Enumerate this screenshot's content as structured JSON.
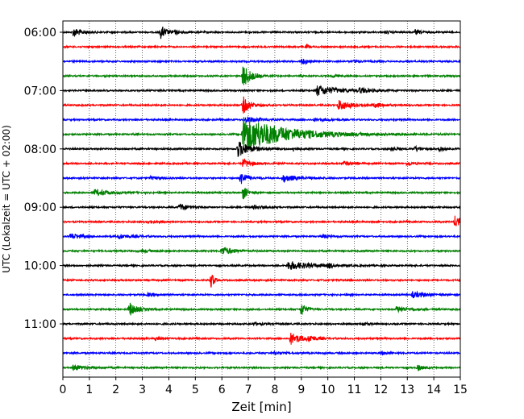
{
  "chart_data": {
    "type": "line",
    "title": "",
    "xlabel": "Zeit  [min]",
    "ylabel": "UTC (Lokalzeit = UTC + 02:00)",
    "xlim": [
      0,
      15
    ],
    "x_ticks": [
      "0",
      "1",
      "2",
      "3",
      "4",
      "5",
      "6",
      "7",
      "8",
      "9",
      "10",
      "11",
      "12",
      "13",
      "14",
      "15"
    ],
    "y_ticks": [
      "06:00",
      "07:00",
      "08:00",
      "09:00",
      "10:00",
      "11:00"
    ],
    "grid": "vertical dotted lines at each minute",
    "trace_interval_minutes": 15,
    "trace_colors": [
      "#000000",
      "#ff0000",
      "#0000ff",
      "#008000"
    ],
    "traces": [
      {
        "start": "06:00",
        "events": [
          {
            "t": 0.4,
            "amp": 0.6,
            "dur": 0.6
          },
          {
            "t": 3.7,
            "amp": 0.9,
            "dur": 0.4
          },
          {
            "t": 4.2,
            "amp": 0.2,
            "dur": 0.6
          },
          {
            "t": 12.2,
            "amp": 0.2,
            "dur": 0.4
          },
          {
            "t": 13.3,
            "amp": 0.3,
            "dur": 0.5
          }
        ]
      },
      {
        "start": "06:15",
        "events": [
          {
            "t": 9.2,
            "amp": 0.3,
            "dur": 0.2
          }
        ]
      },
      {
        "start": "06:30",
        "events": [
          {
            "t": 9.0,
            "amp": 0.4,
            "dur": 0.5
          },
          {
            "t": 11.0,
            "amp": 0.2,
            "dur": 0.5
          }
        ]
      },
      {
        "start": "06:45",
        "events": [
          {
            "t": 6.8,
            "amp": 1.8,
            "dur": 0.5
          },
          {
            "t": 10.2,
            "amp": 0.2,
            "dur": 0.5
          }
        ]
      },
      {
        "start": "07:00",
        "events": [
          {
            "t": 9.6,
            "amp": 0.7,
            "dur": 1.5
          },
          {
            "t": 11.2,
            "amp": 0.3,
            "dur": 0.8
          }
        ]
      },
      {
        "start": "07:15",
        "events": [
          {
            "t": 6.8,
            "amp": 1.2,
            "dur": 0.5
          },
          {
            "t": 10.4,
            "amp": 0.7,
            "dur": 1.0
          },
          {
            "t": 11.8,
            "amp": 0.3,
            "dur": 0.6
          }
        ]
      },
      {
        "start": "07:30",
        "events": [
          {
            "t": 6.9,
            "amp": 0.4,
            "dur": 1.0
          },
          {
            "t": 9.5,
            "amp": 0.2,
            "dur": 0.8
          }
        ]
      },
      {
        "start": "07:45",
        "events": [
          {
            "t": 6.8,
            "amp": 2.5,
            "dur": 3.0
          }
        ]
      },
      {
        "start": "08:00",
        "events": [
          {
            "t": 6.6,
            "amp": 1.2,
            "dur": 0.8
          },
          {
            "t": 8.7,
            "amp": 0.3,
            "dur": 0.3
          },
          {
            "t": 12.4,
            "amp": 0.3,
            "dur": 0.4
          },
          {
            "t": 13.3,
            "amp": 0.4,
            "dur": 0.4
          },
          {
            "t": 14.2,
            "amp": 0.3,
            "dur": 0.3
          }
        ]
      },
      {
        "start": "08:15",
        "events": [
          {
            "t": 6.8,
            "amp": 0.6,
            "dur": 0.6
          },
          {
            "t": 10.6,
            "amp": 0.3,
            "dur": 0.5
          },
          {
            "t": 13.0,
            "amp": 0.3,
            "dur": 0.4
          }
        ]
      },
      {
        "start": "08:30",
        "events": [
          {
            "t": 6.7,
            "amp": 0.9,
            "dur": 0.5
          },
          {
            "t": 8.3,
            "amp": 0.5,
            "dur": 1.0
          },
          {
            "t": 3.3,
            "amp": 0.2,
            "dur": 0.6
          }
        ]
      },
      {
        "start": "08:45",
        "events": [
          {
            "t": 1.2,
            "amp": 0.4,
            "dur": 1.2
          },
          {
            "t": 6.8,
            "amp": 1.0,
            "dur": 0.3
          }
        ]
      },
      {
        "start": "09:00",
        "events": [
          {
            "t": 4.4,
            "amp": 0.5,
            "dur": 0.6
          },
          {
            "t": 7.2,
            "amp": 0.3,
            "dur": 0.6
          }
        ]
      },
      {
        "start": "09:15",
        "events": [
          {
            "t": 14.8,
            "amp": 0.8,
            "dur": 0.6
          },
          {
            "t": 3.2,
            "amp": 0.2,
            "dur": 0.5
          }
        ]
      },
      {
        "start": "09:30",
        "events": [
          {
            "t": 0.3,
            "amp": 0.4,
            "dur": 0.8
          },
          {
            "t": 2.1,
            "amp": 0.3,
            "dur": 1.0
          },
          {
            "t": 9.8,
            "amp": 0.3,
            "dur": 0.5
          }
        ]
      },
      {
        "start": "09:45",
        "events": [
          {
            "t": 6.0,
            "amp": 0.6,
            "dur": 0.8
          },
          {
            "t": 3.0,
            "amp": 0.2,
            "dur": 0.6
          }
        ]
      },
      {
        "start": "10:00",
        "events": [
          {
            "t": 8.5,
            "amp": 0.6,
            "dur": 1.6
          },
          {
            "t": 10.0,
            "amp": 0.3,
            "dur": 0.4
          }
        ]
      },
      {
        "start": "10:15",
        "events": [
          {
            "t": 5.6,
            "amp": 1.3,
            "dur": 0.2
          }
        ]
      },
      {
        "start": "10:30",
        "events": [
          {
            "t": 13.2,
            "amp": 0.4,
            "dur": 1.0
          },
          {
            "t": 3.2,
            "amp": 0.2,
            "dur": 0.5
          }
        ]
      },
      {
        "start": "10:45",
        "events": [
          {
            "t": 2.5,
            "amp": 1.0,
            "dur": 0.5
          },
          {
            "t": 9.0,
            "amp": 1.0,
            "dur": 0.3
          },
          {
            "t": 12.6,
            "amp": 0.4,
            "dur": 0.8
          }
        ]
      },
      {
        "start": "11:00",
        "events": [
          {
            "t": 7.2,
            "amp": 0.2,
            "dur": 0.6
          },
          {
            "t": 11.3,
            "amp": 0.2,
            "dur": 0.5
          }
        ]
      },
      {
        "start": "11:15",
        "events": [
          {
            "t": 8.6,
            "amp": 0.8,
            "dur": 0.8
          },
          {
            "t": 9.3,
            "amp": 0.4,
            "dur": 0.4
          },
          {
            "t": 3.5,
            "amp": 0.2,
            "dur": 0.5
          }
        ]
      },
      {
        "start": "11:30",
        "events": [
          {
            "t": 8.0,
            "amp": 0.2,
            "dur": 0.6
          },
          {
            "t": 12.0,
            "amp": 0.2,
            "dur": 0.5
          }
        ]
      },
      {
        "start": "11:45",
        "events": [
          {
            "t": 0.4,
            "amp": 0.4,
            "dur": 0.8
          },
          {
            "t": 13.4,
            "amp": 0.4,
            "dur": 0.4
          }
        ]
      }
    ]
  }
}
